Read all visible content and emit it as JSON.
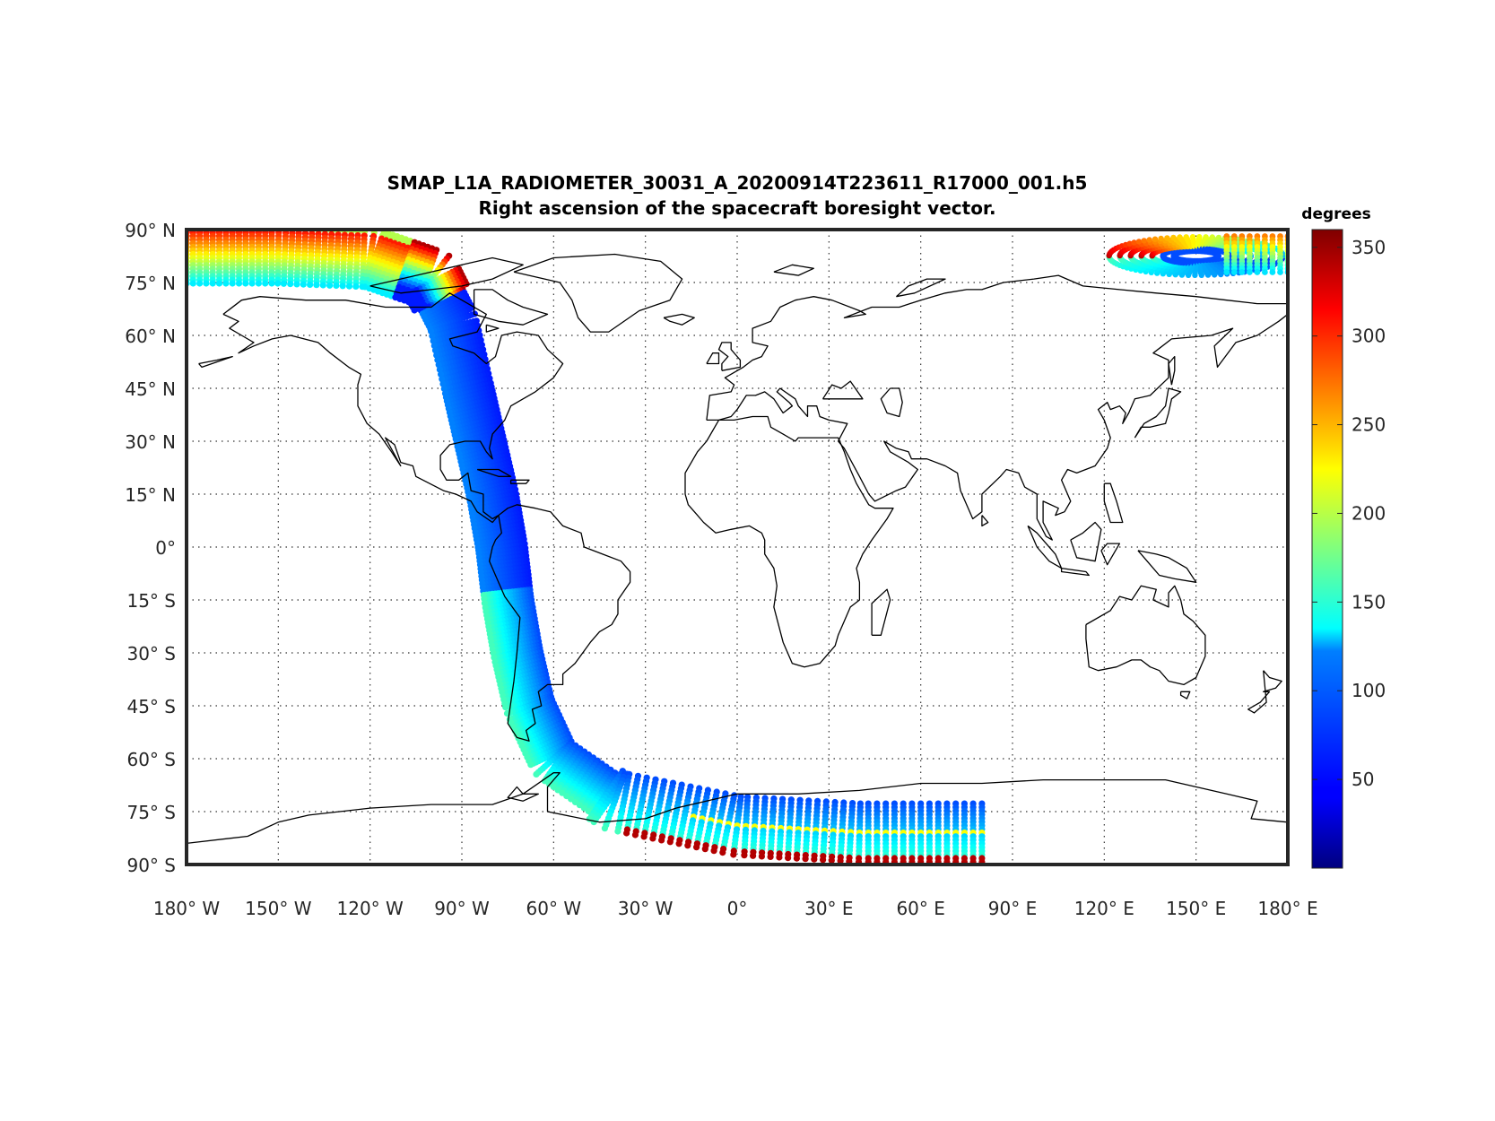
{
  "title": {
    "line1": "SMAP_L1A_RADIOMETER_30031_A_20200914T223611_R17000_001.h5",
    "line2": "Right ascension of the spacecraft boresight vector."
  },
  "colorbar": {
    "unit_label": "degrees",
    "colormap": "jet",
    "range": [
      0,
      360
    ],
    "ticks": [
      50,
      100,
      150,
      200,
      250,
      300,
      350
    ],
    "tick_labels": [
      "50",
      "100",
      "150",
      "200",
      "250",
      "300",
      "350"
    ]
  },
  "map": {
    "projection": "equirectangular",
    "lon_range": [
      -180,
      180
    ],
    "lat_range": [
      -90,
      90
    ],
    "grid": "dotted",
    "coastline_color": "#000000",
    "lon_ticks": [
      -180,
      -150,
      -120,
      -90,
      -60,
      -30,
      0,
      30,
      60,
      90,
      120,
      150,
      180
    ],
    "lat_ticks": [
      90,
      75,
      60,
      45,
      30,
      15,
      0,
      -15,
      -30,
      -45,
      -60,
      -75,
      -90
    ],
    "lon_labels": [
      "180° W",
      "150° W",
      "120° W",
      "90° W",
      "60° W",
      "30° W",
      "0°",
      "30° E",
      "60° E",
      "90° E",
      "120° E",
      "150° E",
      "180° E"
    ],
    "lat_labels": [
      "90° N",
      "75° N",
      "60° N",
      "45° N",
      "30° N",
      "15° N",
      "0°",
      "15° S",
      "30° S",
      "45° S",
      "60° S",
      "75° S",
      "90° S"
    ]
  },
  "chart_data": {
    "type": "scatter",
    "description_of_swath": "satellite swath colored by right ascension (degrees)",
    "swath_centerline": [
      {
        "lon": -180,
        "lat": 83,
        "ra": 300
      },
      {
        "lon": -150,
        "lat": 83,
        "ra": 310
      },
      {
        "lon": -120,
        "lat": 82,
        "ra": 330
      },
      {
        "lon": -100,
        "lat": 76,
        "ra": 345
      },
      {
        "lon": -93,
        "lat": 64,
        "ra": 60
      },
      {
        "lon": -88,
        "lat": 45,
        "ra": 60
      },
      {
        "lon": -84,
        "lat": 30,
        "ra": 65
      },
      {
        "lon": -80,
        "lat": 15,
        "ra": 70
      },
      {
        "lon": -77,
        "lat": 0,
        "ra": 80
      },
      {
        "lon": -75,
        "lat": -15,
        "ra": 90
      },
      {
        "lon": -72,
        "lat": -30,
        "ra": 100
      },
      {
        "lon": -68,
        "lat": -45,
        "ra": 105
      },
      {
        "lon": -60,
        "lat": -60,
        "ra": 110
      },
      {
        "lon": -40,
        "lat": -72,
        "ra": 110
      },
      {
        "lon": 0,
        "lat": -79,
        "ra": 110
      },
      {
        "lon": 40,
        "lat": -81,
        "ra": 110
      },
      {
        "lon": 80,
        "lat": -81,
        "ra": 120
      }
    ],
    "swath_halfwidth_km": 500,
    "arctic_cap": {
      "lon_range": [
        120,
        180
      ],
      "lat_range": [
        78,
        87
      ],
      "ra_range": [
        30,
        330
      ]
    }
  }
}
